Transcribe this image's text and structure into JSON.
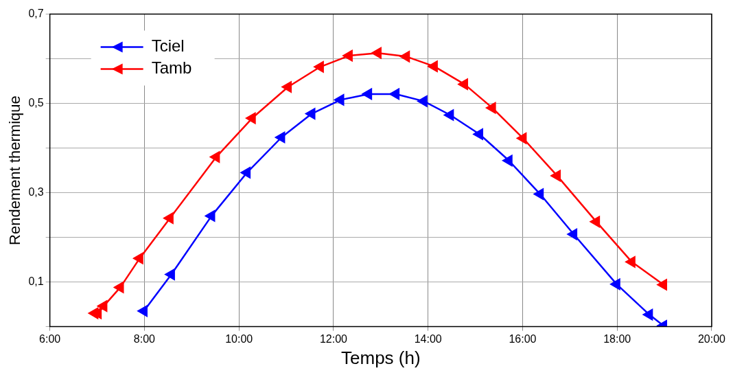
{
  "chart_data": {
    "type": "line",
    "xlabel": "Temps (h)",
    "ylabel": "Rendement thermique",
    "xlim": [
      6,
      20
    ],
    "xticks": [
      {
        "value": 6,
        "label": "6:00"
      },
      {
        "value": 8,
        "label": "8:00"
      },
      {
        "value": 10,
        "label": "10:00"
      },
      {
        "value": 12,
        "label": "12:00"
      },
      {
        "value": 14,
        "label": "14:00"
      },
      {
        "value": 16,
        "label": "16:00"
      },
      {
        "value": 18,
        "label": "18:00"
      },
      {
        "value": 20,
        "label": "20:00"
      }
    ],
    "ylim": [
      0,
      0.7
    ],
    "yticks": [
      {
        "value": 0,
        "label": null
      },
      {
        "value": 0.1,
        "label": "0,1"
      },
      {
        "value": 0.2,
        "label": null
      },
      {
        "value": 0.3,
        "label": "0,3"
      },
      {
        "value": 0.4,
        "label": null
      },
      {
        "value": 0.5,
        "label": "0,5"
      },
      {
        "value": 0.6,
        "label": null
      },
      {
        "value": 0.7,
        "label": "0,7"
      }
    ],
    "grid": true,
    "legend": "top left",
    "marker": "triangle",
    "line_style": "solid",
    "series": [
      {
        "name": "Tciel",
        "color": "#0000ff",
        "x": [
          7.99,
          8.57,
          9.42,
          10.17,
          10.9,
          11.54,
          12.15,
          12.74,
          13.32,
          13.91,
          14.47,
          15.09,
          15.71,
          16.37,
          17.08,
          17.99,
          18.68,
          18.98
        ],
        "values": [
          0.035,
          0.117,
          0.248,
          0.345,
          0.424,
          0.477,
          0.508,
          0.521,
          0.521,
          0.505,
          0.474,
          0.431,
          0.372,
          0.297,
          0.207,
          0.095,
          0.027,
          0.002
        ]
      },
      {
        "name": "Tamb",
        "color": "#ff0000",
        "x": [
          6.95,
          7.02,
          7.14,
          7.49,
          7.9,
          8.54,
          9.52,
          10.28,
          11.04,
          11.72,
          12.33,
          12.94,
          13.54,
          14.13,
          14.77,
          15.36,
          16.01,
          16.73,
          17.56,
          18.31,
          18.98
        ],
        "values": [
          0.03,
          0.03,
          0.046,
          0.088,
          0.153,
          0.243,
          0.38,
          0.467,
          0.537,
          0.582,
          0.607,
          0.613,
          0.605,
          0.583,
          0.543,
          0.49,
          0.422,
          0.338,
          0.235,
          0.145,
          0.094
        ]
      }
    ]
  }
}
